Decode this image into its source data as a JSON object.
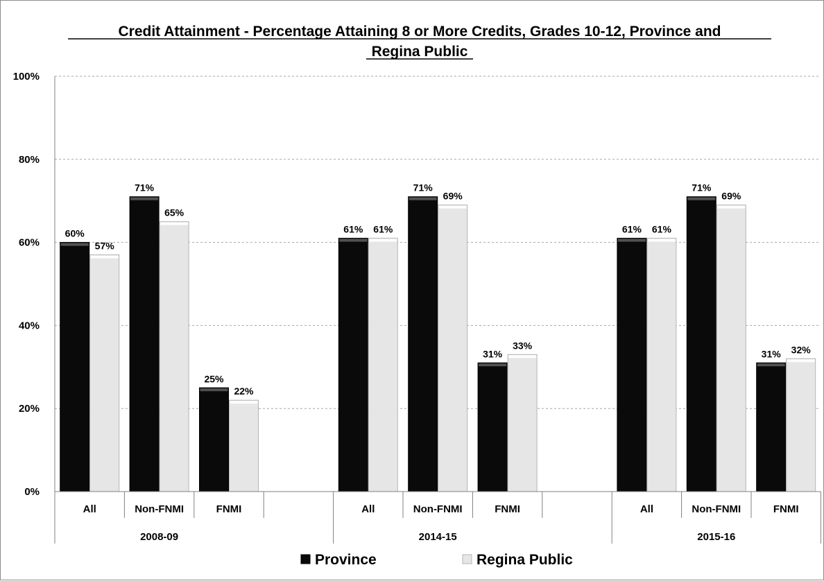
{
  "chart_data": {
    "type": "bar",
    "title_line1": "Credit Attainment - Percentage Attaining 8 or More Credits, Grades 10-12, Province and",
    "title_line2": "Regina Public",
    "yticks": [
      "0%",
      "20%",
      "40%",
      "60%",
      "80%",
      "100%"
    ],
    "ylim": [
      0,
      100
    ],
    "grid": true,
    "legend_position": "bottom",
    "groups": [
      {
        "label": "2008-09",
        "categories": [
          "All",
          "Non-FNMI",
          "FNMI",
          ""
        ]
      },
      {
        "label": "2014-15",
        "categories": [
          "All",
          "Non-FNMI",
          "FNMI",
          ""
        ]
      },
      {
        "label": "2015-16",
        "categories": [
          "All",
          "Non-FNMI",
          "FNMI"
        ]
      }
    ],
    "series": [
      {
        "name": "Province",
        "color": "#0a0a0a",
        "values": [
          60,
          71,
          25,
          61,
          71,
          31,
          61,
          71,
          31
        ],
        "labels": [
          "60%",
          "71%",
          "25%",
          "61%",
          "71%",
          "31%",
          "61%",
          "71%",
          "31%"
        ]
      },
      {
        "name": "Regina Public",
        "color": "#e6e6e6",
        "values": [
          57,
          65,
          22,
          61,
          69,
          33,
          61,
          69,
          32
        ],
        "labels": [
          "57%",
          "65%",
          "22%",
          "61%",
          "69%",
          "33%",
          "61%",
          "69%",
          "32%"
        ]
      }
    ]
  }
}
